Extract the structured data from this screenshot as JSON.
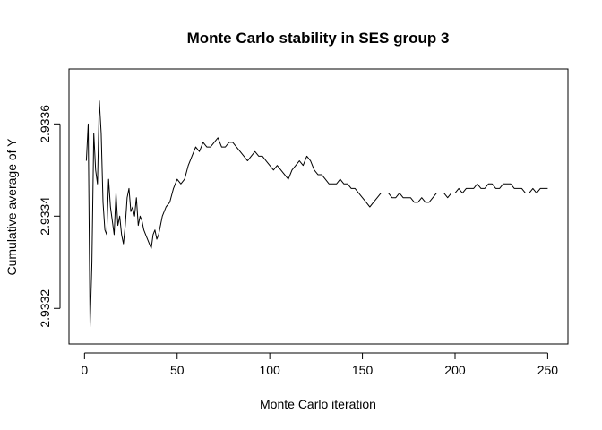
{
  "chart_data": {
    "type": "line",
    "title": "Monte Carlo stability in SES group 3",
    "xlabel": "Monte Carlo iteration",
    "ylabel": "Cumulative average of Y",
    "xlim": [
      1,
      250
    ],
    "ylim": [
      2.93315,
      2.93369
    ],
    "xticks": [
      0,
      50,
      100,
      150,
      200,
      250
    ],
    "yticks": [
      2.9332,
      2.9334,
      2.9336
    ],
    "ytick_labels": [
      "2.9332",
      "2.9334",
      "2.9336"
    ],
    "grid": false,
    "legend": "none",
    "line_color": "#000000",
    "series": [
      {
        "x": [
          1,
          2,
          3,
          4,
          5,
          6,
          7,
          8,
          9,
          10,
          11,
          12,
          13,
          14,
          15,
          16,
          17,
          18,
          19,
          20,
          21,
          22,
          23,
          24,
          25,
          26,
          27,
          28,
          29,
          30,
          31,
          32,
          33,
          34,
          35,
          36,
          37,
          38,
          39,
          40,
          42,
          44,
          46,
          48,
          50,
          52,
          54,
          56,
          58,
          60,
          62,
          64,
          66,
          68,
          70,
          72,
          74,
          76,
          78,
          80,
          82,
          84,
          86,
          88,
          90,
          92,
          94,
          96,
          98,
          100,
          102,
          104,
          106,
          108,
          110,
          112,
          114,
          116,
          118,
          120,
          122,
          124,
          126,
          128,
          130,
          132,
          134,
          136,
          138,
          140,
          142,
          144,
          146,
          148,
          150,
          152,
          154,
          156,
          158,
          160,
          162,
          164,
          166,
          168,
          170,
          172,
          174,
          176,
          178,
          180,
          182,
          184,
          186,
          188,
          190,
          192,
          194,
          196,
          198,
          200,
          202,
          204,
          206,
          208,
          210,
          212,
          214,
          216,
          218,
          220,
          222,
          224,
          226,
          228,
          230,
          232,
          234,
          236,
          238,
          240,
          242,
          244,
          246,
          248,
          250
        ],
        "y": [
          2.93352,
          2.9336,
          2.93316,
          2.9333,
          2.93358,
          2.9335,
          2.93347,
          2.93365,
          2.93358,
          2.93343,
          2.93337,
          2.93336,
          2.93348,
          2.93342,
          2.93339,
          2.93336,
          2.93345,
          2.93338,
          2.9334,
          2.93336,
          2.93334,
          2.93338,
          2.93344,
          2.93346,
          2.93341,
          2.93342,
          2.9334,
          2.93344,
          2.93338,
          2.9334,
          2.93339,
          2.93337,
          2.93336,
          2.93335,
          2.93334,
          2.93333,
          2.93336,
          2.93337,
          2.93335,
          2.93336,
          2.9334,
          2.93342,
          2.93343,
          2.93346,
          2.93348,
          2.93347,
          2.93348,
          2.93351,
          2.93353,
          2.93355,
          2.93354,
          2.93356,
          2.93355,
          2.93355,
          2.93356,
          2.93357,
          2.93355,
          2.93355,
          2.93356,
          2.93356,
          2.93355,
          2.93354,
          2.93353,
          2.93352,
          2.93353,
          2.93354,
          2.93353,
          2.93353,
          2.93352,
          2.93351,
          2.9335,
          2.93351,
          2.9335,
          2.93349,
          2.93348,
          2.9335,
          2.93351,
          2.93352,
          2.93351,
          2.93353,
          2.93352,
          2.9335,
          2.93349,
          2.93349,
          2.93348,
          2.93347,
          2.93347,
          2.93347,
          2.93348,
          2.93347,
          2.93347,
          2.93346,
          2.93346,
          2.93345,
          2.93344,
          2.93343,
          2.93342,
          2.93343,
          2.93344,
          2.93345,
          2.93345,
          2.93345,
          2.93344,
          2.93344,
          2.93345,
          2.93344,
          2.93344,
          2.93344,
          2.93343,
          2.93343,
          2.93344,
          2.93343,
          2.93343,
          2.93344,
          2.93345,
          2.93345,
          2.93345,
          2.93344,
          2.93345,
          2.93345,
          2.93346,
          2.93345,
          2.93346,
          2.93346,
          2.93346,
          2.93347,
          2.93346,
          2.93346,
          2.93347,
          2.93347,
          2.93346,
          2.93346,
          2.93347,
          2.93347,
          2.93347,
          2.93346,
          2.93346,
          2.93346,
          2.93345,
          2.93345,
          2.93346,
          2.93345,
          2.93346,
          2.93346,
          2.93346
        ]
      }
    ]
  }
}
